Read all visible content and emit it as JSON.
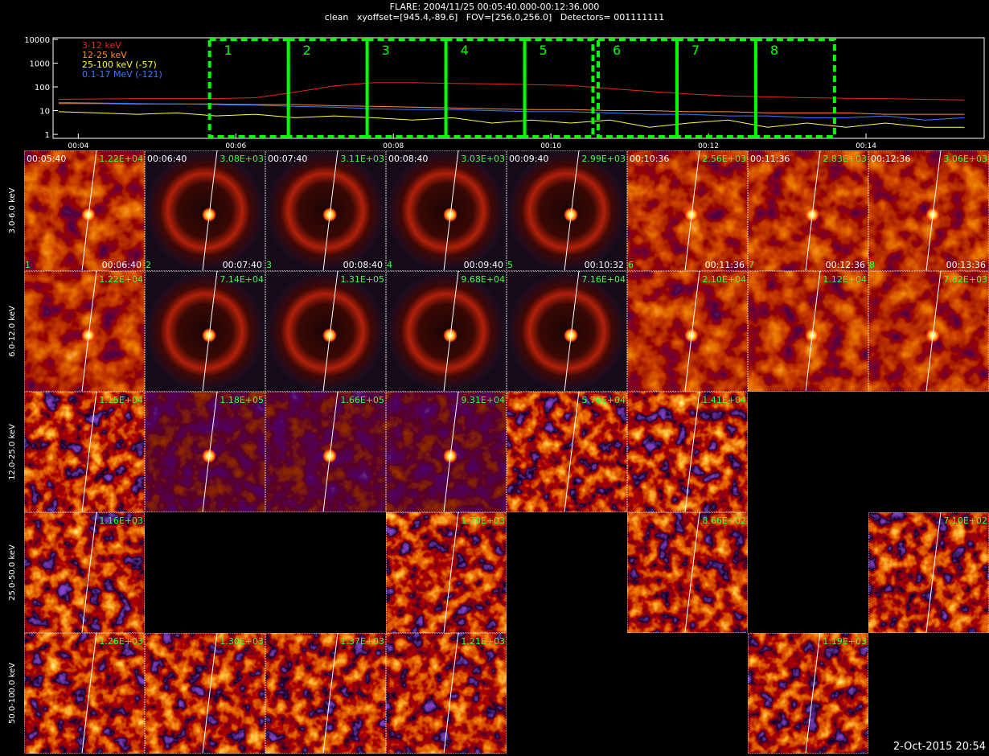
{
  "header": {
    "title": "FLARE: 2004/11/25 00:05:40.000-00:12:36.000",
    "subtitle": "clean   xyoffset=[945.4,-89.6]   FOV=[256.0,256.0]   Detectors= 001111111"
  },
  "chart_data": {
    "type": "line",
    "log_scale": true,
    "x": [
      3.75,
      4.25,
      4.75,
      5.25,
      5.75,
      6.25,
      6.75,
      7.25,
      7.75,
      8.25,
      8.75,
      9.25,
      9.75,
      10.25,
      10.75,
      11.25,
      11.75,
      12.25,
      12.75,
      13.25,
      13.75,
      14.25,
      14.75,
      15.25
    ],
    "series": [
      {
        "name": "3-12 keV",
        "color": "#e8281e",
        "values": [
          30,
          31,
          32,
          32,
          32,
          35,
          60,
          110,
          150,
          150,
          140,
          135,
          125,
          115,
          85,
          65,
          50,
          42,
          38,
          35,
          33,
          32,
          30,
          28
        ]
      },
      {
        "name": "12-25 keV",
        "color": "#ff8c3c",
        "values": [
          20,
          20,
          19,
          19,
          19,
          18,
          18,
          16,
          15,
          14,
          13,
          12,
          11,
          11,
          10,
          10,
          9,
          9,
          8,
          8,
          8,
          7,
          7,
          7
        ]
      },
      {
        "name": "25-100 keV (-57)",
        "color": "#ffff3c",
        "values": [
          9,
          8,
          7,
          8,
          6,
          7,
          5,
          6,
          5,
          4,
          5,
          3,
          4,
          3,
          4,
          2,
          3,
          4,
          2,
          3,
          2,
          3,
          2,
          2
        ]
      },
      {
        "name": "0.1-17 MeV (-121)",
        "color": "#3c78ff",
        "values": [
          22,
          21,
          20,
          19,
          18,
          17,
          15,
          14,
          12,
          11,
          11,
          10,
          9,
          9,
          8,
          7,
          7,
          6,
          6,
          5,
          5,
          6,
          4,
          5
        ]
      }
    ],
    "xlim": [
      3.68,
      15.5
    ],
    "xticks": [
      {
        "value": 4,
        "label": "00:04"
      },
      {
        "value": 6,
        "label": "00:06"
      },
      {
        "value": 8,
        "label": "00:08"
      },
      {
        "value": 10,
        "label": "00:10"
      },
      {
        "value": 12,
        "label": "00:12"
      },
      {
        "value": 14,
        "label": "00:14"
      }
    ],
    "ylim": [
      0.68,
      11700
    ],
    "yticks": [
      1,
      10,
      100,
      1000,
      10000
    ],
    "intervals": [
      {
        "label": "1",
        "range": [
          5.667,
          6.667
        ]
      },
      {
        "label": "2",
        "range": [
          6.667,
          7.667
        ]
      },
      {
        "label": "3",
        "range": [
          7.667,
          8.667
        ]
      },
      {
        "label": "4",
        "range": [
          8.667,
          9.667
        ]
      },
      {
        "label": "5",
        "range": [
          9.667,
          10.533
        ]
      },
      {
        "label": "6",
        "range": [
          10.6,
          11.6
        ]
      },
      {
        "label": "7",
        "range": [
          11.6,
          12.6
        ]
      },
      {
        "label": "8",
        "range": [
          12.6,
          13.6
        ]
      }
    ],
    "interval_color": "#00ff00"
  },
  "panels": {
    "row_labels": [
      "3.0-6.0 keV",
      "6.0-12.0 keV",
      "12.0-25.0 keV",
      "25.0-50.0 keV",
      "50.0-100.0 keV"
    ],
    "rows": [
      [
        {
          "start": "00:05:40",
          "max": "1.22E+04",
          "index": "1",
          "end": "00:06:40"
        },
        {
          "start": "00:06:40",
          "max": "3.08E+03",
          "index": "2",
          "end": "00:07:40"
        },
        {
          "start": "00:07:40",
          "max": "3.11E+03",
          "index": "3",
          "end": "00:08:40"
        },
        {
          "start": "00:08:40",
          "max": "3.03E+03",
          "index": "4",
          "end": "00:09:40"
        },
        {
          "start": "00:09:40",
          "max": "2.99E+03",
          "index": "5",
          "end": "00:10:32"
        },
        {
          "start": "00:10:36",
          "max": "2.56E+03",
          "index": "6",
          "end": "00:11:36"
        },
        {
          "start": "00:11:36",
          "max": "2.83E+03",
          "index": "7",
          "end": "00:12:36"
        },
        {
          "start": "00:12:36",
          "max": "3.06E+03",
          "index": "8",
          "end": "00:13:36"
        }
      ],
      [
        {
          "max": "1.22E+04"
        },
        {
          "max": "7.14E+04"
        },
        {
          "max": "1.31E+05"
        },
        {
          "max": "9.68E+04"
        },
        {
          "max": "7.16E+04"
        },
        {
          "max": "2.10E+04"
        },
        {
          "max": "1.12E+04"
        },
        {
          "max": "7.82E+03"
        }
      ],
      [
        {
          "max": "1.15E+04"
        },
        {
          "max": "1.18E+05"
        },
        {
          "max": "1.66E+05"
        },
        {
          "max": "9.31E+04"
        },
        {
          "max": "5.76E+04"
        },
        {
          "max": "1.41E+04"
        },
        null,
        null
      ],
      [
        {
          "max": "1.16E+03"
        },
        null,
        null,
        {
          "max": "1.70E+03"
        },
        null,
        {
          "max": "8.66E+02"
        },
        null,
        {
          "max": "7.10E+02"
        }
      ],
      [
        {
          "max": "1.26E+03"
        },
        {
          "max": "1.30E+03"
        },
        {
          "max": "1.37E+03"
        },
        {
          "max": "1.21E+03"
        },
        null,
        null,
        {
          "max": "1.19E+03"
        },
        null
      ]
    ]
  },
  "footer": "2-Oct-2015 20:54"
}
